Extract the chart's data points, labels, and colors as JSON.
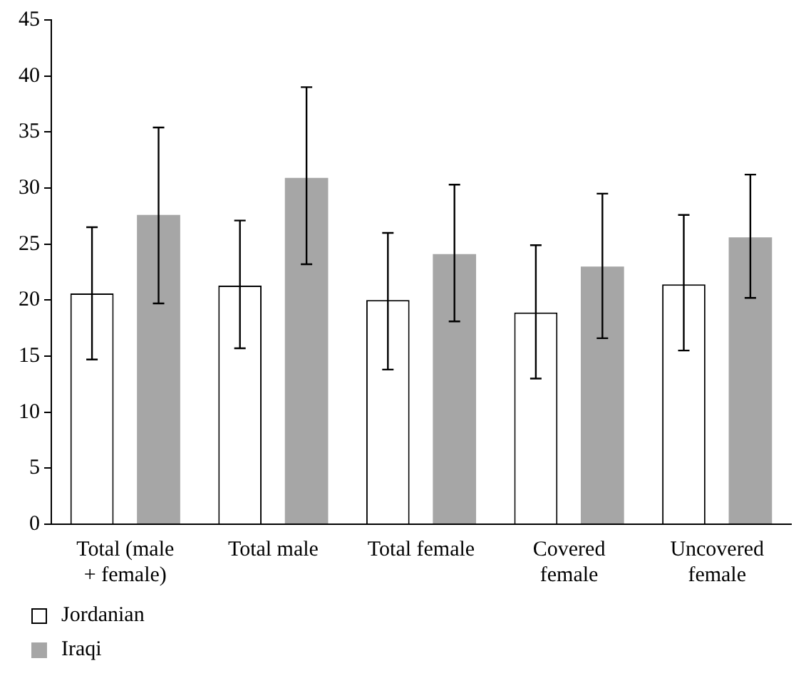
{
  "chart_data": {
    "type": "bar",
    "categories": [
      "Total (male + female)",
      "Total male",
      "Total female",
      "Covered female",
      "Uncovered female"
    ],
    "series": [
      {
        "name": "Jordanian",
        "color": "#ffffff",
        "values": [
          20.6,
          21.3,
          20.0,
          18.9,
          21.4
        ],
        "errors": [
          [
            14.7,
            26.5
          ],
          [
            15.7,
            27.1
          ],
          [
            13.8,
            26.0
          ],
          [
            13.0,
            24.9
          ],
          [
            15.5,
            27.6
          ]
        ]
      },
      {
        "name": "Iraqi",
        "color": "#a6a6a6",
        "values": [
          27.6,
          30.9,
          24.1,
          23.0,
          25.6
        ],
        "errors": [
          [
            19.7,
            35.4
          ],
          [
            23.2,
            39.0
          ],
          [
            18.1,
            30.3
          ],
          [
            16.6,
            29.5
          ],
          [
            20.2,
            31.2
          ]
        ]
      }
    ],
    "ylim": [
      0,
      45
    ],
    "yticks": [
      0,
      5,
      10,
      15,
      20,
      25,
      30,
      35,
      40,
      45
    ],
    "grid": false,
    "legend": "bottom left"
  }
}
